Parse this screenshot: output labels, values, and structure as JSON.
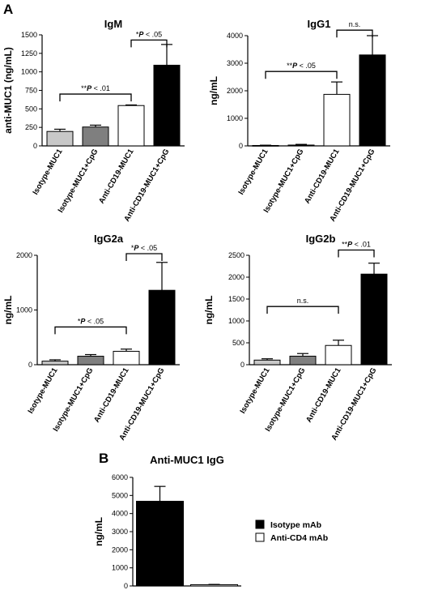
{
  "panels": [
    {
      "id": "A"
    },
    {
      "id": "B"
    }
  ],
  "chart_data": [
    {
      "type": "bar",
      "panel": "A",
      "title": "IgM",
      "ylabel": "anti-MUC1 (ng/mL)",
      "categories": [
        "Isotype-MUC1",
        "Isotype-MUC1+CpG",
        "Anti-CD19-MUC1",
        "Anti-CD19-MUC1+CpG"
      ],
      "values": [
        195,
        255,
        545,
        1090
      ],
      "errors": [
        30,
        25,
        8,
        280
      ],
      "bar_colors": [
        "#c8c8c8",
        "#7f7f7f",
        "#ffffff",
        "#000000"
      ],
      "ylim": [
        0,
        1500
      ],
      "yticks": [
        0,
        250,
        500,
        750,
        1000,
        1250,
        1500
      ],
      "comparisons": [
        {
          "from": 0,
          "to": 2,
          "label": "**P < .01",
          "y": 700
        },
        {
          "from": 2,
          "to": 3,
          "label": "*P < .05",
          "y": 1430
        }
      ]
    },
    {
      "type": "bar",
      "panel": "A",
      "title": "IgG1",
      "ylabel": "ng/mL",
      "categories": [
        "Isotype-MUC1",
        "Isotype-MUC1+CpG",
        "Anti-CD19-MUC1",
        "Anti-CD19-MUC1+CpG"
      ],
      "values": [
        15,
        30,
        1870,
        3300
      ],
      "errors": [
        10,
        25,
        450,
        700
      ],
      "bar_colors": [
        "#c8c8c8",
        "#7f7f7f",
        "#ffffff",
        "#000000"
      ],
      "ylim": [
        0,
        4000
      ],
      "yticks": [
        0,
        1000,
        2000,
        3000,
        4000
      ],
      "comparisons": [
        {
          "from": 0,
          "to": 2,
          "label": "**P < .05",
          "y": 2700
        },
        {
          "from": 2,
          "to": 3,
          "label": "n.s.",
          "y": 4200
        }
      ]
    },
    {
      "type": "bar",
      "panel": "A",
      "title": "IgG2a",
      "ylabel": "ng/mL",
      "categories": [
        "Isotype-MUC1",
        "Isotype-MUC1+CpG",
        "Anti-CD19-MUC1",
        "Anti-CD19-MUC1+CpG"
      ],
      "values": [
        65,
        155,
        245,
        1360
      ],
      "errors": [
        25,
        30,
        40,
        510
      ],
      "bar_colors": [
        "#c8c8c8",
        "#7f7f7f",
        "#ffffff",
        "#000000"
      ],
      "ylim": [
        0,
        2000
      ],
      "yticks": [
        0,
        1000,
        2000
      ],
      "comparisons": [
        {
          "from": 0,
          "to": 2,
          "label": "*P < .05",
          "y": 690
        },
        {
          "from": 2,
          "to": 3,
          "label": "*P < .05",
          "y": 2030
        }
      ]
    },
    {
      "type": "bar",
      "panel": "A",
      "title": "IgG2b",
      "ylabel": "ng/mL",
      "categories": [
        "Isotype-MUC1",
        "Isotype-MUC1+CpG",
        "Anti-CD19-MUC1",
        "Anti-CD19-MUC1+CpG"
      ],
      "values": [
        105,
        195,
        440,
        2070
      ],
      "errors": [
        30,
        60,
        120,
        250
      ],
      "bar_colors": [
        "#c8c8c8",
        "#7f7f7f",
        "#ffffff",
        "#000000"
      ],
      "ylim": [
        0,
        2500
      ],
      "yticks": [
        0,
        500,
        1000,
        1500,
        2000,
        2500
      ],
      "comparisons": [
        {
          "from": 0,
          "to": 2,
          "label": "n.s.",
          "y": 1330
        },
        {
          "from": 2,
          "to": 3,
          "label": "**P < .01",
          "y": 2620
        }
      ]
    },
    {
      "type": "bar",
      "panel": "B",
      "title": "Anti-MUC1 IgG",
      "ylabel": "ng/mL",
      "categories": [
        "Isotype mAb",
        "Anti-CD4 mAb"
      ],
      "values": [
        4680,
        70
      ],
      "errors": [
        820,
        15
      ],
      "bar_colors": [
        "#000000",
        "#ffffff"
      ],
      "ylim": [
        0,
        6000
      ],
      "yticks": [
        0,
        1000,
        2000,
        3000,
        4000,
        5000,
        6000
      ],
      "legend": {
        "placement": "right",
        "entries": [
          {
            "label": "Isotype mAb",
            "color": "#000000"
          },
          {
            "label": "Anti-CD4 mAb",
            "color": "#ffffff"
          }
        ]
      }
    }
  ]
}
